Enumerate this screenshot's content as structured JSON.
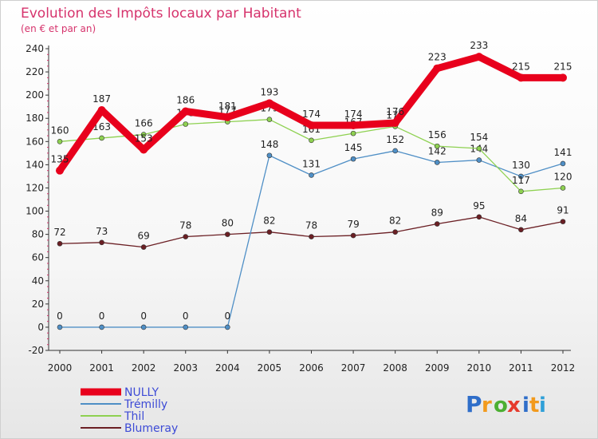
{
  "chart_data": {
    "type": "line",
    "title": "Evolution des Impôts locaux par Habitant",
    "subtitle": "(en € et par an)",
    "xlabel": "",
    "ylabel": "",
    "categories": [
      "2000",
      "2001",
      "2002",
      "2003",
      "2004",
      "2005",
      "2006",
      "2007",
      "2008",
      "2009",
      "2010",
      "2011",
      "2012"
    ],
    "ylim": [
      -20,
      240
    ],
    "yticks": [
      -20,
      0,
      20,
      40,
      60,
      80,
      100,
      120,
      140,
      160,
      180,
      200,
      220,
      240
    ],
    "grid": false,
    "legend_position": "bottom-left",
    "series": [
      {
        "name": "NULLY",
        "color": "#e8001c",
        "values": [
          135,
          187,
          153,
          186,
          181,
          193,
          174,
          174,
          176,
          223,
          233,
          215,
          215
        ]
      },
      {
        "name": "Trémilly",
        "color": "#4f8fc6",
        "values": [
          0,
          0,
          0,
          0,
          0,
          148,
          131,
          145,
          152,
          142,
          144,
          130,
          141
        ]
      },
      {
        "name": "Thil",
        "color": "#8ed151",
        "values": [
          160,
          163,
          166,
          175,
          177,
          179,
          161,
          167,
          173,
          156,
          154,
          117,
          120
        ]
      },
      {
        "name": "Blumeray",
        "color": "#6b1f24",
        "values": [
          72,
          73,
          69,
          78,
          80,
          82,
          78,
          79,
          82,
          89,
          95,
          84,
          91
        ]
      }
    ]
  },
  "logo": {
    "letters": [
      "P",
      "r",
      "o",
      "x",
      "i",
      "t",
      "i"
    ],
    "colors": [
      "#2f6ec9",
      "#f29a1d",
      "#4caf32",
      "#e63a2c",
      "#2f6ec9",
      "#f29a1d",
      "#2fa0d8"
    ]
  }
}
